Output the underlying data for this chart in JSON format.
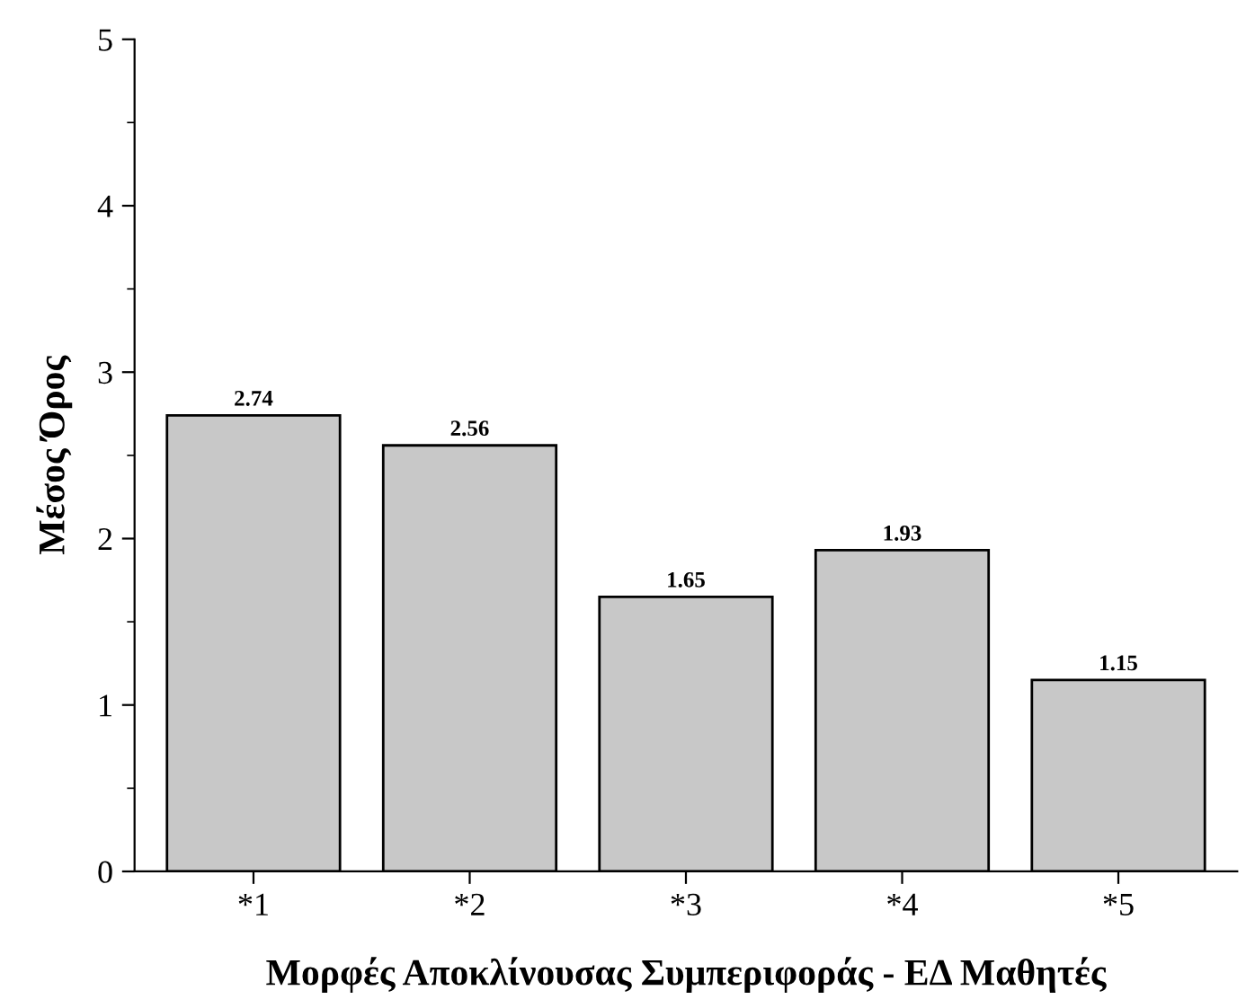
{
  "chart_data": {
    "type": "bar",
    "xlabel": "Μορφές Αποκλίνουσας Συμπεριφοράς - ΕΔ Μαθητές",
    "ylabel": "Μέσος Όρος",
    "categories": [
      "*1",
      "*2",
      "*3",
      "*4",
      "*5"
    ],
    "values": [
      2.74,
      2.56,
      1.65,
      1.93,
      1.15
    ],
    "color": "#c8c8c8",
    "ylim": [
      0,
      5
    ],
    "yticks": [
      0,
      1,
      2,
      3,
      4,
      5
    ],
    "data_labels": true,
    "grid": false,
    "legend": false
  }
}
